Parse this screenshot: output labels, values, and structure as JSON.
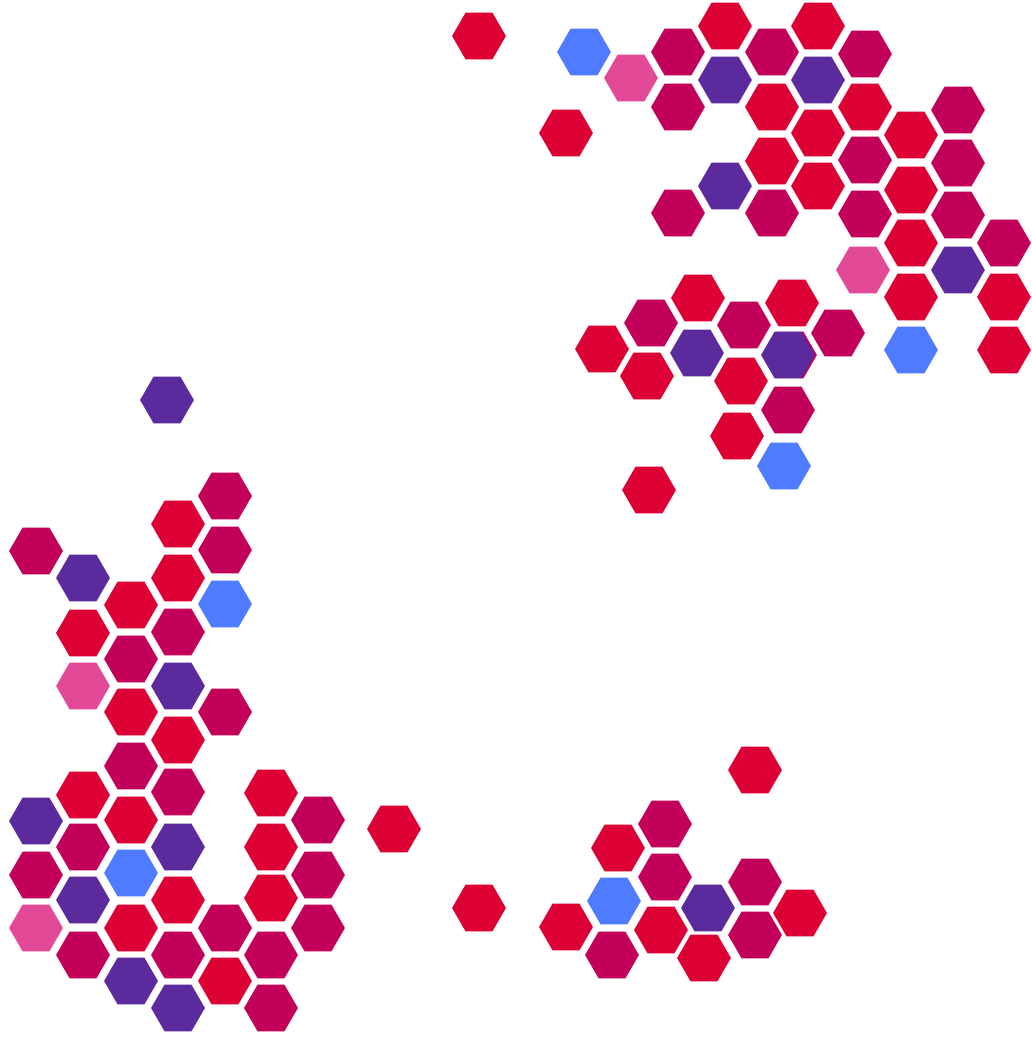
{
  "palette": {
    "red": "#DC0034",
    "crimson": "#C2005A",
    "purple": "#5B2A9D",
    "pink": "#E24A97",
    "blue": "#4E7BFF"
  },
  "hexagons": [
    {
      "c": "red"
    },
    {
      "c": "blue"
    },
    {
      "c": "pink"
    },
    {
      "c": "crimson"
    },
    {
      "c": "red"
    },
    {
      "c": "purple"
    },
    {
      "c": "crimson"
    },
    {
      "c": "red"
    },
    {
      "c": "purple"
    },
    {
      "c": "crimson"
    },
    {
      "c": "crimson"
    },
    {
      "c": "red"
    },
    {
      "c": "red"
    },
    {
      "c": "crimson"
    },
    {
      "c": "red"
    },
    {
      "c": "red"
    },
    {
      "c": "crimson"
    },
    {
      "c": "red"
    },
    {
      "c": "crimson"
    },
    {
      "c": "red"
    },
    {
      "c": "crimson"
    },
    {
      "c": "purple"
    },
    {
      "c": "crimson"
    },
    {
      "c": "red"
    },
    {
      "c": "crimson"
    },
    {
      "c": "red"
    },
    {
      "c": "crimson"
    },
    {
      "c": "red"
    },
    {
      "c": "crimson"
    },
    {
      "c": "pink"
    },
    {
      "c": "red"
    },
    {
      "c": "purple"
    },
    {
      "c": "red"
    },
    {
      "c": "red"
    },
    {
      "c": "red"
    },
    {
      "c": "crimson"
    },
    {
      "c": "red"
    },
    {
      "c": "crimson"
    },
    {
      "c": "crimson"
    },
    {
      "c": "crimson"
    },
    {
      "c": "red"
    },
    {
      "c": "purple"
    },
    {
      "c": "purple"
    },
    {
      "c": "blue"
    },
    {
      "c": "red"
    },
    {
      "c": "red"
    },
    {
      "c": "crimson"
    },
    {
      "c": "red"
    },
    {
      "c": "blue"
    },
    {
      "c": "red"
    },
    {
      "c": "purple"
    },
    {
      "c": "crimson"
    },
    {
      "c": "red"
    },
    {
      "c": "crimson"
    },
    {
      "c": "crimson"
    },
    {
      "c": "red"
    },
    {
      "c": "blue"
    },
    {
      "c": "purple"
    },
    {
      "c": "red"
    },
    {
      "c": "red"
    },
    {
      "c": "crimson"
    },
    {
      "c": "crimson"
    },
    {
      "c": "purple"
    },
    {
      "c": "pink"
    },
    {
      "c": "red"
    },
    {
      "c": "crimson"
    },
    {
      "c": "red"
    },
    {
      "c": "crimson"
    },
    {
      "c": "crimson"
    },
    {
      "c": "red"
    },
    {
      "c": "red"
    },
    {
      "c": "purple"
    },
    {
      "c": "crimson"
    },
    {
      "c": "red"
    },
    {
      "c": "crimson"
    },
    {
      "c": "red"
    },
    {
      "c": "purple"
    },
    {
      "c": "crimson"
    },
    {
      "c": "blue"
    },
    {
      "c": "crimson"
    },
    {
      "c": "red"
    },
    {
      "c": "purple"
    },
    {
      "c": "red"
    },
    {
      "c": "pink"
    },
    {
      "c": "red"
    },
    {
      "c": "crimson"
    },
    {
      "c": "crimson"
    },
    {
      "c": "crimson"
    },
    {
      "c": "crimson"
    },
    {
      "c": "crimson"
    },
    {
      "c": "purple"
    },
    {
      "c": "red"
    },
    {
      "c": "purple"
    },
    {
      "c": "crimson"
    },
    {
      "c": "red"
    },
    {
      "c": "red"
    },
    {
      "c": "red"
    },
    {
      "c": "crimson"
    },
    {
      "c": "red"
    },
    {
      "c": "crimson"
    },
    {
      "c": "crimson"
    },
    {
      "c": "blue"
    },
    {
      "c": "purple"
    },
    {
      "c": "red"
    },
    {
      "c": "red"
    },
    {
      "c": "red"
    },
    {
      "c": "crimson"
    },
    {
      "c": "crimson"
    },
    {
      "c": "red"
    },
    {
      "c": "crimson"
    },
    {
      "c": "red"
    },
    {
      "c": "red"
    },
    {
      "c": "purple"
    },
    {
      "c": "red"
    },
    {
      "c": "red"
    },
    {
      "c": "crimson"
    },
    {
      "c": "purple"
    },
    {
      "c": "crimson"
    },
    {
      "c": "red"
    },
    {
      "c": "crimson"
    },
    {
      "c": "pink"
    }
  ]
}
